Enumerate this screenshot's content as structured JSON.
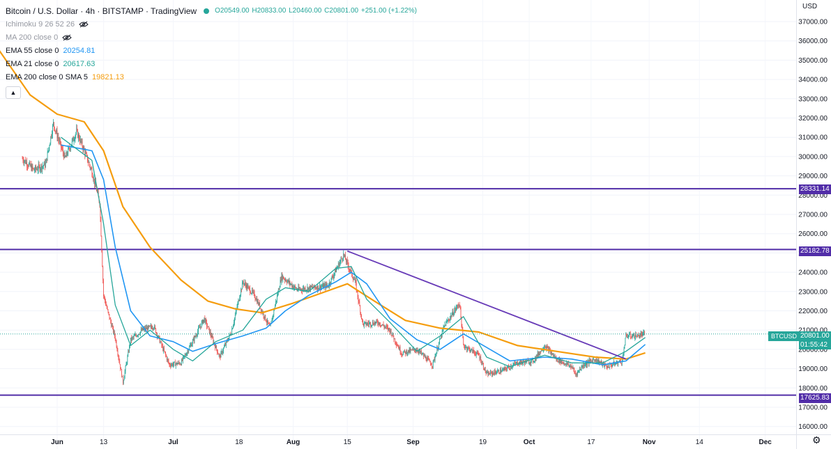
{
  "header": {
    "title": "Bitcoin / U.S. Dollar · 4h · BITSTAMP · TradingView",
    "ohlc": {
      "o": "O20549.00",
      "h": "H20833.00",
      "l": "L20460.00",
      "c": "C20801.00",
      "change": "+251.00 (+1.22%)"
    },
    "indicators": [
      {
        "name": "Ichimoku 9 26 52 26",
        "value": "",
        "muted": true,
        "hidden": true
      },
      {
        "name": "MA 200 close 0",
        "value": "",
        "muted": true,
        "hidden": true
      },
      {
        "name": "EMA 55 close 0",
        "value": "20254.81",
        "color": "#2196f3"
      },
      {
        "name": "EMA 21 close 0",
        "value": "20617.63",
        "color": "#26a69a"
      },
      {
        "name": "EMA 200 close 0 SMA 5",
        "value": "19821.13",
        "color": "#f59d0e"
      }
    ],
    "collapse_icon": "chevron-up-icon"
  },
  "price_axis": {
    "currency": "USD",
    "ticks": [
      37000,
      36000,
      35000,
      34000,
      33000,
      32000,
      31000,
      30000,
      29000,
      28000,
      27000,
      26000,
      25000,
      24000,
      23000,
      22000,
      21000,
      20000,
      19000,
      18000,
      17000,
      16000
    ],
    "tick_labels": [
      "37000.00",
      "36000.00",
      "35000.00",
      "34000.00",
      "33000.00",
      "32000.00",
      "31000.00",
      "30000.00",
      "29000.00",
      "28000.00",
      "27000.00",
      "26000.00",
      "25000.00",
      "24000.00",
      "23000.00",
      "22000.00",
      "21000.00",
      "20000.00",
      "19000.00",
      "18000.00",
      "17000.00",
      "16000.00"
    ]
  },
  "time_axis": {
    "labels": [
      "Jun",
      "13",
      "Jul",
      "18",
      "Aug",
      "15",
      "Sep",
      "19",
      "Oct",
      "17",
      "Nov",
      "14",
      "Dec"
    ]
  },
  "levels": [
    {
      "price": 28331.14,
      "label": "28331.14"
    },
    {
      "price": 25182.78,
      "label": "25182.78"
    },
    {
      "price": 17625.83,
      "label": "17625.83"
    }
  ],
  "last_price": {
    "symbol": "BTCUSD",
    "price": 20801.0,
    "label": "20801.00",
    "countdown": "01:55:42"
  },
  "colors": {
    "level_line": "#512da8",
    "trendline": "#673ab7",
    "ema55": "#2196f3",
    "ema21": "#26a69a",
    "ema200": "#f59d0e",
    "up": "#26a69a",
    "down": "#ef5350"
  },
  "chart_data": {
    "type": "candlestick",
    "timeframe": "4h",
    "ylim": [
      15800,
      37600
    ],
    "grid": true,
    "close_path": [
      [
        "2022-05-23",
        29900
      ],
      [
        "2022-05-26",
        29300
      ],
      [
        "2022-05-29",
        29600
      ],
      [
        "2022-05-31",
        31700
      ],
      [
        "2022-06-03",
        29900
      ],
      [
        "2022-06-06",
        31300
      ],
      [
        "2022-06-08",
        30300
      ],
      [
        "2022-06-10",
        29200
      ],
      [
        "2022-06-12",
        27600
      ],
      [
        "2022-06-13",
        22800
      ],
      [
        "2022-06-14",
        22000
      ],
      [
        "2022-06-16",
        20600
      ],
      [
        "2022-06-18",
        18300
      ],
      [
        "2022-06-20",
        20500
      ],
      [
        "2022-06-23",
        21000
      ],
      [
        "2022-06-26",
        21200
      ],
      [
        "2022-06-30",
        19200
      ],
      [
        "2022-07-03",
        19300
      ],
      [
        "2022-07-06",
        20400
      ],
      [
        "2022-07-09",
        21600
      ],
      [
        "2022-07-13",
        19600
      ],
      [
        "2022-07-16",
        20900
      ],
      [
        "2022-07-19",
        23500
      ],
      [
        "2022-07-22",
        22800
      ],
      [
        "2022-07-26",
        21100
      ],
      [
        "2022-07-29",
        23800
      ],
      [
        "2022-08-02",
        23100
      ],
      [
        "2022-08-06",
        23200
      ],
      [
        "2022-08-10",
        23300
      ],
      [
        "2022-08-14",
        24900
      ],
      [
        "2022-08-17",
        23500
      ],
      [
        "2022-08-19",
        21300
      ],
      [
        "2022-08-23",
        21400
      ],
      [
        "2022-08-26",
        21000
      ],
      [
        "2022-08-29",
        19800
      ],
      [
        "2022-09-02",
        20000
      ],
      [
        "2022-09-06",
        19200
      ],
      [
        "2022-09-09",
        21200
      ],
      [
        "2022-09-13",
        22400
      ],
      [
        "2022-09-14",
        20200
      ],
      [
        "2022-09-18",
        19700
      ],
      [
        "2022-09-20",
        18700
      ],
      [
        "2022-09-24",
        18900
      ],
      [
        "2022-09-28",
        19300
      ],
      [
        "2022-10-02",
        19400
      ],
      [
        "2022-10-05",
        20200
      ],
      [
        "2022-10-08",
        19500
      ],
      [
        "2022-10-12",
        19100
      ],
      [
        "2022-10-13",
        18700
      ],
      [
        "2022-10-15",
        19200
      ],
      [
        "2022-10-18",
        19500
      ],
      [
        "2022-10-21",
        19100
      ],
      [
        "2022-10-25",
        19400
      ],
      [
        "2022-10-26",
        20700
      ],
      [
        "2022-10-29",
        20700
      ],
      [
        "2022-10-31",
        20801
      ]
    ],
    "ema55": [
      [
        "2022-06-02",
        30600
      ],
      [
        "2022-06-10",
        30300
      ],
      [
        "2022-06-13",
        28800
      ],
      [
        "2022-06-16",
        25300
      ],
      [
        "2022-06-20",
        22000
      ],
      [
        "2022-06-25",
        20700
      ],
      [
        "2022-07-01",
        20400
      ],
      [
        "2022-07-06",
        19900
      ],
      [
        "2022-07-12",
        20300
      ],
      [
        "2022-07-19",
        20700
      ],
      [
        "2022-07-25",
        21100
      ],
      [
        "2022-07-30",
        22000
      ],
      [
        "2022-08-05",
        22800
      ],
      [
        "2022-08-12",
        23500
      ],
      [
        "2022-08-16",
        24000
      ],
      [
        "2022-08-20",
        23400
      ],
      [
        "2022-08-26",
        21600
      ],
      [
        "2022-09-02",
        20500
      ],
      [
        "2022-09-08",
        20000
      ],
      [
        "2022-09-14",
        20800
      ],
      [
        "2022-09-20",
        20100
      ],
      [
        "2022-09-26",
        19400
      ],
      [
        "2022-10-05",
        19600
      ],
      [
        "2022-10-12",
        19500
      ],
      [
        "2022-10-20",
        19200
      ],
      [
        "2022-10-26",
        19400
      ],
      [
        "2022-10-31",
        20255
      ]
    ],
    "ema21": [
      [
        "2022-06-02",
        31000
      ],
      [
        "2022-06-10",
        29800
      ],
      [
        "2022-06-13",
        26500
      ],
      [
        "2022-06-16",
        22300
      ],
      [
        "2022-06-20",
        20200
      ],
      [
        "2022-06-25",
        21000
      ],
      [
        "2022-07-01",
        20000
      ],
      [
        "2022-07-06",
        19400
      ],
      [
        "2022-07-12",
        20400
      ],
      [
        "2022-07-19",
        21000
      ],
      [
        "2022-07-25",
        22600
      ],
      [
        "2022-07-30",
        23200
      ],
      [
        "2022-08-05",
        23000
      ],
      [
        "2022-08-12",
        24200
      ],
      [
        "2022-08-16",
        24300
      ],
      [
        "2022-08-20",
        22600
      ],
      [
        "2022-08-26",
        21400
      ],
      [
        "2022-09-02",
        19900
      ],
      [
        "2022-09-08",
        20700
      ],
      [
        "2022-09-14",
        21700
      ],
      [
        "2022-09-20",
        19600
      ],
      [
        "2022-09-26",
        19100
      ],
      [
        "2022-10-05",
        19700
      ],
      [
        "2022-10-12",
        19300
      ],
      [
        "2022-10-20",
        19300
      ],
      [
        "2022-10-26",
        19900
      ],
      [
        "2022-10-31",
        20618
      ]
    ],
    "ema200": [
      [
        "2022-05-16",
        35800
      ],
      [
        "2022-05-25",
        33200
      ],
      [
        "2022-06-01",
        32200
      ],
      [
        "2022-06-08",
        31800
      ],
      [
        "2022-06-13",
        30300
      ],
      [
        "2022-06-18",
        27400
      ],
      [
        "2022-06-25",
        25300
      ],
      [
        "2022-07-03",
        23600
      ],
      [
        "2022-07-10",
        22500
      ],
      [
        "2022-07-17",
        22100
      ],
      [
        "2022-07-24",
        21900
      ],
      [
        "2022-08-01",
        22400
      ],
      [
        "2022-08-08",
        22900
      ],
      [
        "2022-08-15",
        23400
      ],
      [
        "2022-08-22",
        22500
      ],
      [
        "2022-08-30",
        21500
      ],
      [
        "2022-09-08",
        21100
      ],
      [
        "2022-09-18",
        20900
      ],
      [
        "2022-09-28",
        20200
      ],
      [
        "2022-10-08",
        19900
      ],
      [
        "2022-10-18",
        19600
      ],
      [
        "2022-10-26",
        19500
      ],
      [
        "2022-10-31",
        19821
      ]
    ],
    "trendline": {
      "from": [
        "2022-08-15",
        25100
      ],
      "to": [
        "2022-10-26",
        19500
      ]
    }
  }
}
